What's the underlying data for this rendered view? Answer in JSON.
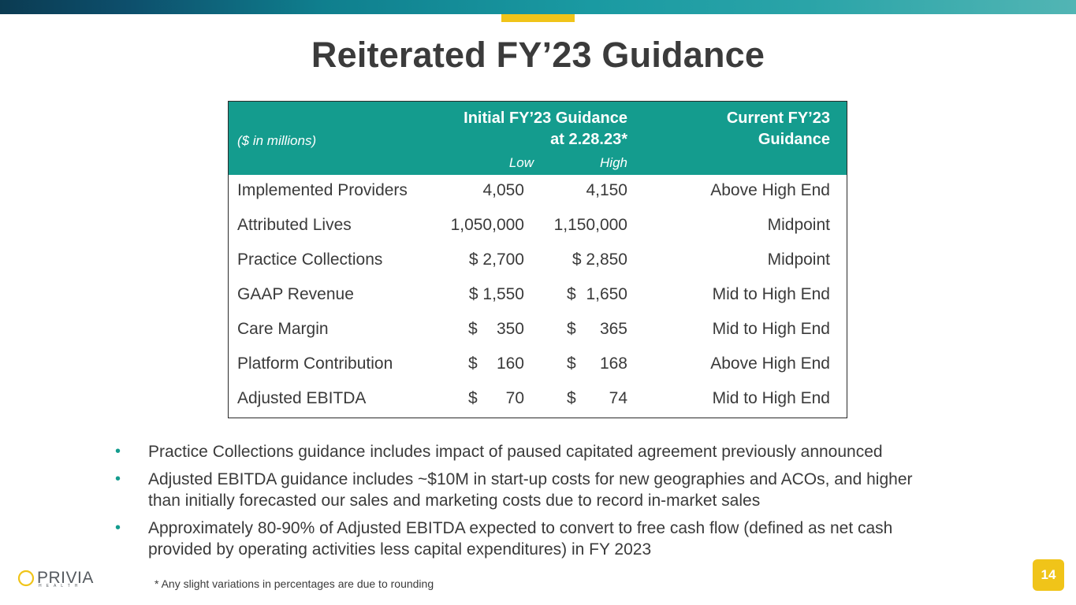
{
  "title": "Reiterated FY’23 Guidance",
  "table": {
    "units_label": "($ in millions)",
    "initial_header_line1": "Initial FY’23 Guidance",
    "initial_header_line2": "at 2.28.23*",
    "current_header_line1": "Current FY’23",
    "current_header_line2": "Guidance",
    "low_label": "Low",
    "high_label": "High",
    "rows": [
      {
        "label": "Implemented Providers",
        "low_sym": "",
        "low": "4,050",
        "high_sym": "",
        "high": "4,150",
        "current": "Above High End"
      },
      {
        "label": "Attributed Lives",
        "low_sym": "",
        "low": "1,050,000",
        "high_sym": "",
        "high": "1,150,000",
        "current": "Midpoint"
      },
      {
        "label": "Practice Collections",
        "low_sym": "",
        "low": "$ 2,700",
        "high_sym": "",
        "high": "$ 2,850",
        "current": "Midpoint"
      },
      {
        "label": "GAAP Revenue",
        "low_sym": "",
        "low": "$ 1,550",
        "high_sym": "$",
        "high": "1,650",
        "current": "Mid to High End"
      },
      {
        "label": "Care Margin",
        "low_sym": "$",
        "low": "350",
        "high_sym": "$",
        "high": "365",
        "current": "Mid to High End"
      },
      {
        "label": "Platform Contribution",
        "low_sym": "$",
        "low": "160",
        "high_sym": "$",
        "high": "168",
        "current": "Above High End"
      },
      {
        "label": "Adjusted EBITDA",
        "low_sym": "$",
        "low": "70",
        "high_sym": "$",
        "high": "74",
        "current": "Mid to High End"
      }
    ]
  },
  "bullets": [
    {
      "line1": "Practice Collections guidance includes impact of paused capitated agreement previously announced",
      "line2": ""
    },
    {
      "line1": "Adjusted EBITDA guidance includes ~$10M in start-up costs for new geographies and ACOs, and higher",
      "line2": "than initially forecasted our sales and marketing costs due to record in-market sales"
    },
    {
      "line1": "Approximately 80-90% of Adjusted EBITDA expected to convert to free cash flow (defined as net cash",
      "line2": "provided by operating activities less capital expenditures) in FY 2023"
    }
  ],
  "footnote": "* Any slight variations in percentages are due to rounding",
  "logo": {
    "name": "PRIVIA",
    "sub": "HEALTH"
  },
  "page_number": "14",
  "colors": {
    "teal": "#149c8e",
    "yellow": "#f0c419",
    "text": "#3a3a3a"
  }
}
